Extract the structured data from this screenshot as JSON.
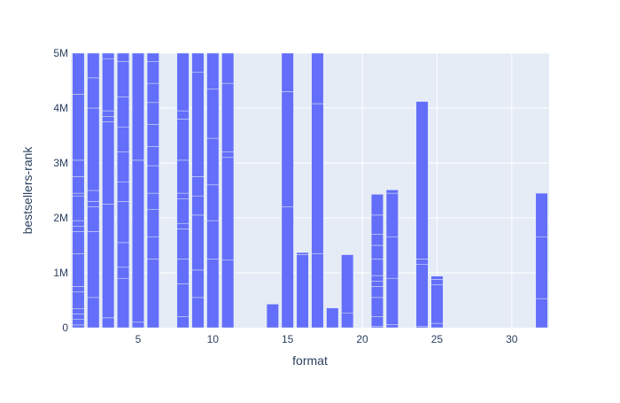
{
  "chart_data": {
    "type": "bar",
    "barmode": "stack",
    "xlabel": "format",
    "ylabel": "bestsellers-rank",
    "xlim": [
      0.5,
      32.5
    ],
    "ylim": [
      0,
      5000000
    ],
    "x_ticks": [
      {
        "value": 5,
        "label": "5"
      },
      {
        "value": 10,
        "label": "10"
      },
      {
        "value": 15,
        "label": "15"
      },
      {
        "value": 20,
        "label": "20"
      },
      {
        "value": 25,
        "label": "25"
      },
      {
        "value": 30,
        "label": "30"
      }
    ],
    "y_ticks": [
      {
        "value": 0,
        "label": "0"
      },
      {
        "value": 1000000,
        "label": "1M"
      },
      {
        "value": 2000000,
        "label": "2M"
      },
      {
        "value": 3000000,
        "label": "3M"
      },
      {
        "value": 4000000,
        "label": "4M"
      },
      {
        "value": 5000000,
        "label": "5M"
      }
    ],
    "grid": true,
    "bar_color": "#636efa",
    "plot_bg": "#e5ecf6",
    "bars": [
      {
        "x": 1,
        "segments": [
          0,
          50000,
          150000,
          250000,
          350000,
          650000,
          750000,
          1350000,
          1750000,
          1850000,
          1950000,
          2400000,
          2450000,
          2750000,
          3050000,
          4250000,
          5000000
        ]
      },
      {
        "x": 2,
        "segments": [
          0,
          550000,
          1750000,
          2200000,
          2300000,
          2500000,
          4000000,
          4550000,
          5000000
        ]
      },
      {
        "x": 3,
        "segments": [
          0,
          180000,
          2250000,
          3750000,
          3850000,
          3950000,
          4900000,
          5000000
        ]
      },
      {
        "x": 4,
        "segments": [
          0,
          900000,
          1100000,
          1550000,
          2300000,
          2650000,
          3200000,
          3650000,
          4200000,
          4850000,
          5000000
        ]
      },
      {
        "x": 5,
        "segments": [
          0,
          100000,
          3050000,
          5000000
        ]
      },
      {
        "x": 6,
        "segments": [
          0,
          1250000,
          1650000,
          2150000,
          2450000,
          2950000,
          3300000,
          3700000,
          4100000,
          4450000,
          4850000,
          5000000
        ]
      },
      {
        "x": 8,
        "segments": [
          0,
          200000,
          800000,
          1250000,
          1800000,
          1900000,
          2350000,
          2450000,
          3050000,
          3800000,
          3950000,
          5000000
        ]
      },
      {
        "x": 9,
        "segments": [
          0,
          550000,
          1050000,
          2050000,
          2400000,
          2750000,
          4650000,
          5000000
        ]
      },
      {
        "x": 10,
        "segments": [
          0,
          1250000,
          1950000,
          2600000,
          3450000,
          4350000,
          5000000
        ]
      },
      {
        "x": 11,
        "segments": [
          0,
          1230000,
          3100000,
          3200000,
          4450000,
          5000000
        ]
      },
      {
        "x": 14,
        "segments": [
          0,
          430000
        ]
      },
      {
        "x": 15,
        "segments": [
          0,
          2200000,
          4300000,
          5000000
        ]
      },
      {
        "x": 16,
        "segments": [
          0,
          1330000,
          1370000
        ]
      },
      {
        "x": 17,
        "segments": [
          0,
          1350000,
          4080000,
          5000000
        ]
      },
      {
        "x": 18,
        "segments": [
          0,
          360000
        ]
      },
      {
        "x": 19,
        "segments": [
          0,
          270000,
          1330000
        ]
      },
      {
        "x": 21,
        "segments": [
          0,
          20000,
          200000,
          550000,
          750000,
          850000,
          950000,
          1250000,
          1500000,
          1700000,
          2050000,
          2430000
        ]
      },
      {
        "x": 22,
        "segments": [
          0,
          60000,
          900000,
          1650000,
          2450000,
          2510000
        ]
      },
      {
        "x": 24,
        "segments": [
          0,
          20000,
          1150000,
          1250000,
          4120000
        ]
      },
      {
        "x": 25,
        "segments": [
          0,
          80000,
          780000,
          880000,
          940000
        ]
      },
      {
        "x": 32,
        "segments": [
          0,
          530000,
          1650000,
          2450000
        ]
      }
    ]
  }
}
